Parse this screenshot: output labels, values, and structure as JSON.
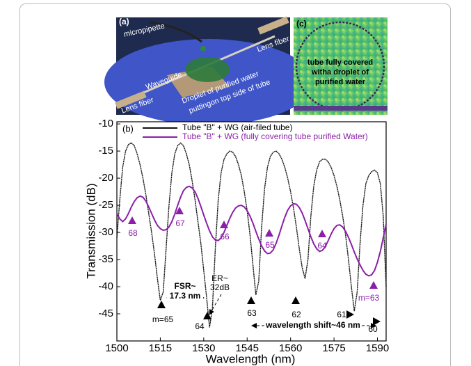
{
  "panel_a": {
    "label": "(a)",
    "micropipette": "micropipette",
    "lens_fiber_right": "Lens fiber",
    "lens_fiber_left": "Lens fiber",
    "waveguide": "Waveguide",
    "droplet_1": "Droplet of purified water",
    "droplet_2": "puttingon top side of tube"
  },
  "panel_c": {
    "label": "(c)",
    "lines": [
      "tube fully covered",
      "witha droplet of",
      "purified water"
    ]
  },
  "chart_data": {
    "type": "line",
    "panel_label": "(b)",
    "x_label": "Wavelength (nm)",
    "y_label": "Transmission (dB)",
    "x": [
      1500,
      1501,
      1502,
      1503,
      1504,
      1505,
      1506,
      1507,
      1508,
      1509,
      1510,
      1511,
      1512,
      1513,
      1514,
      1515,
      1516,
      1517,
      1518,
      1519,
      1520,
      1521,
      1522,
      1523,
      1524,
      1525,
      1526,
      1527,
      1528,
      1529,
      1530,
      1531,
      1532,
      1533,
      1534,
      1535,
      1536,
      1537,
      1538,
      1539,
      1540,
      1541,
      1542,
      1543,
      1544,
      1545,
      1546,
      1547,
      1548,
      1549,
      1550,
      1551,
      1552,
      1553,
      1554,
      1555,
      1556,
      1557,
      1558,
      1559,
      1560,
      1561,
      1562,
      1563,
      1564,
      1565,
      1566,
      1567,
      1568,
      1569,
      1570,
      1571,
      1572,
      1573,
      1574,
      1575,
      1576,
      1577,
      1578,
      1579,
      1580,
      1581,
      1582,
      1583,
      1584,
      1585,
      1586,
      1587,
      1588,
      1589,
      1590,
      1591,
      1592,
      1593
    ],
    "series": [
      {
        "name": "Tube \"B\" + WG  (air-filed tube)",
        "color": "#111111",
        "values": [
          -31,
          -24,
          -18,
          -15,
          -13.8,
          -13.5,
          -14,
          -15.5,
          -17.5,
          -20,
          -23,
          -26.5,
          -30,
          -34,
          -38.5,
          -42.5,
          -41,
          -33,
          -25,
          -19,
          -15.5,
          -14,
          -13.5,
          -14,
          -15.5,
          -17.5,
          -20.5,
          -24,
          -28,
          -32,
          -37,
          -42,
          -47.5,
          -44,
          -33,
          -24,
          -19,
          -16.5,
          -15.5,
          -15,
          -15.2,
          -16,
          -17.5,
          -19.5,
          -22.5,
          -26,
          -30.5,
          -36,
          -41.5,
          -39,
          -29,
          -22,
          -18,
          -16,
          -15.2,
          -15,
          -15.5,
          -16.5,
          -18,
          -20,
          -22.5,
          -25.5,
          -29,
          -33,
          -36.5,
          -38.5,
          -35,
          -27,
          -21.5,
          -18.5,
          -17,
          -16.5,
          -16.5,
          -17,
          -18,
          -19.5,
          -21.5,
          -24,
          -27,
          -30.5,
          -35,
          -40,
          -44.5,
          -41,
          -32,
          -25,
          -21,
          -19.5,
          -18.8,
          -18.5,
          -19,
          -21,
          -27,
          -40
        ]
      },
      {
        "name": "Tube \"B\" + WG  (fully covering tube purified Water)",
        "color": "#8b1fa8",
        "values": [
          -26.5,
          -27.5,
          -28,
          -27.5,
          -26.5,
          -25.3,
          -24.3,
          -23.6,
          -23.3,
          -23.5,
          -24.2,
          -25.3,
          -26.5,
          -27.7,
          -28.7,
          -29.3,
          -29.6,
          -29.5,
          -29,
          -28,
          -26.6,
          -25,
          -23.5,
          -22.3,
          -21.7,
          -21.5,
          -21.8,
          -22.5,
          -23.7,
          -25.2,
          -26.8,
          -28.3,
          -29.7,
          -30.8,
          -31.4,
          -31.5,
          -31,
          -30,
          -28.7,
          -27.4,
          -26.3,
          -25.5,
          -25.1,
          -25,
          -25.3,
          -26,
          -27,
          -28.3,
          -29.8,
          -31.2,
          -32.5,
          -33.4,
          -33.9,
          -33.8,
          -33.2,
          -32,
          -30.5,
          -28.8,
          -27.2,
          -25.9,
          -25.1,
          -24.7,
          -24.8,
          -25.4,
          -26.4,
          -27.8,
          -29.3,
          -30.8,
          -32.1,
          -33,
          -33.5,
          -33.3,
          -32.6,
          -31.5,
          -30.3,
          -29.3,
          -28.7,
          -28.6,
          -29,
          -29.8,
          -30.9,
          -32.2,
          -33.6,
          -34.9,
          -36,
          -37,
          -37.7,
          -38,
          -37.8,
          -37,
          -35.5,
          -33.5,
          -31,
          -28.5
        ]
      }
    ],
    "xlim": [
      1500,
      1593
    ],
    "ylim": [
      -50,
      -9.6
    ],
    "xticks": [
      1500,
      1515,
      1530,
      1545,
      1560,
      1575,
      1590
    ],
    "yticks": [
      -10,
      -15,
      -20,
      -25,
      -30,
      -35,
      -40,
      -45
    ],
    "grid": false,
    "legend": "top",
    "mode_labels_air": [
      "m=65",
      "64",
      "63",
      "62",
      "61",
      "60"
    ],
    "mode_labels_water": [
      "68",
      "67",
      "66",
      "65",
      "64",
      "m=63"
    ],
    "annotations": [
      "FSR~",
      "17.3 nm",
      "ER~",
      "32dB",
      "wavelength shift~46 nm"
    ]
  }
}
